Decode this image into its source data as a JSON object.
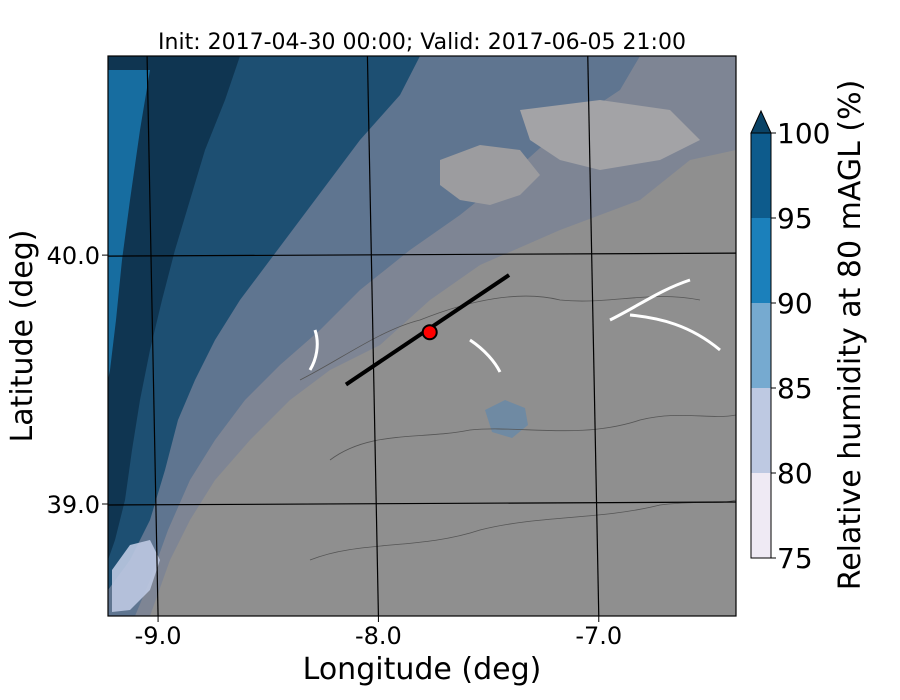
{
  "chart_data": {
    "type": "heatmap",
    "title": "Init: 2017-04-30 00:00; Valid: 2017-06-05 21:00",
    "xlabel": "Longitude (deg)",
    "ylabel": "Latitude (deg)",
    "x_ticks": [
      {
        "value": -9.0,
        "label": "-9.0"
      },
      {
        "value": -8.0,
        "label": "-8.0"
      },
      {
        "value": -7.0,
        "label": "-7.0"
      }
    ],
    "y_ticks": [
      {
        "value": 40.0,
        "label": "40.0"
      },
      {
        "value": 39.0,
        "label": "39.0"
      }
    ],
    "xlim": [
      -9.2,
      -6.35
    ],
    "ylim": [
      38.55,
      40.8
    ],
    "grid": true,
    "colorbar": {
      "label": "Relative humidity at 80 mAGL (%)",
      "levels": [
        75,
        80,
        85,
        90,
        95,
        100
      ],
      "tick_labels": [
        "75",
        "80",
        "85",
        "90",
        "95",
        "100"
      ],
      "colors": [
        "#efeaf4",
        "#bec9e2",
        "#76aad0",
        "#1b80bb",
        "#0d5b8c"
      ],
      "extend_color": "#0a4366",
      "extend": "max"
    },
    "cross_section": {
      "start": {
        "lon": -8.12,
        "lat": 39.48
      },
      "end": {
        "lon": -7.38,
        "lat": 39.92
      }
    },
    "marker": {
      "lon": -7.74,
      "lat": 39.69,
      "color": "#ff0000"
    },
    "field_colors": {
      "dry_gray": "#8f8f8f",
      "light_gray": "#9c9c9f",
      "mid": "#7e8594",
      "blue_gray": "#5f7590",
      "deep_blue": "#1d4f72",
      "darkest": "#0f3551"
    }
  }
}
